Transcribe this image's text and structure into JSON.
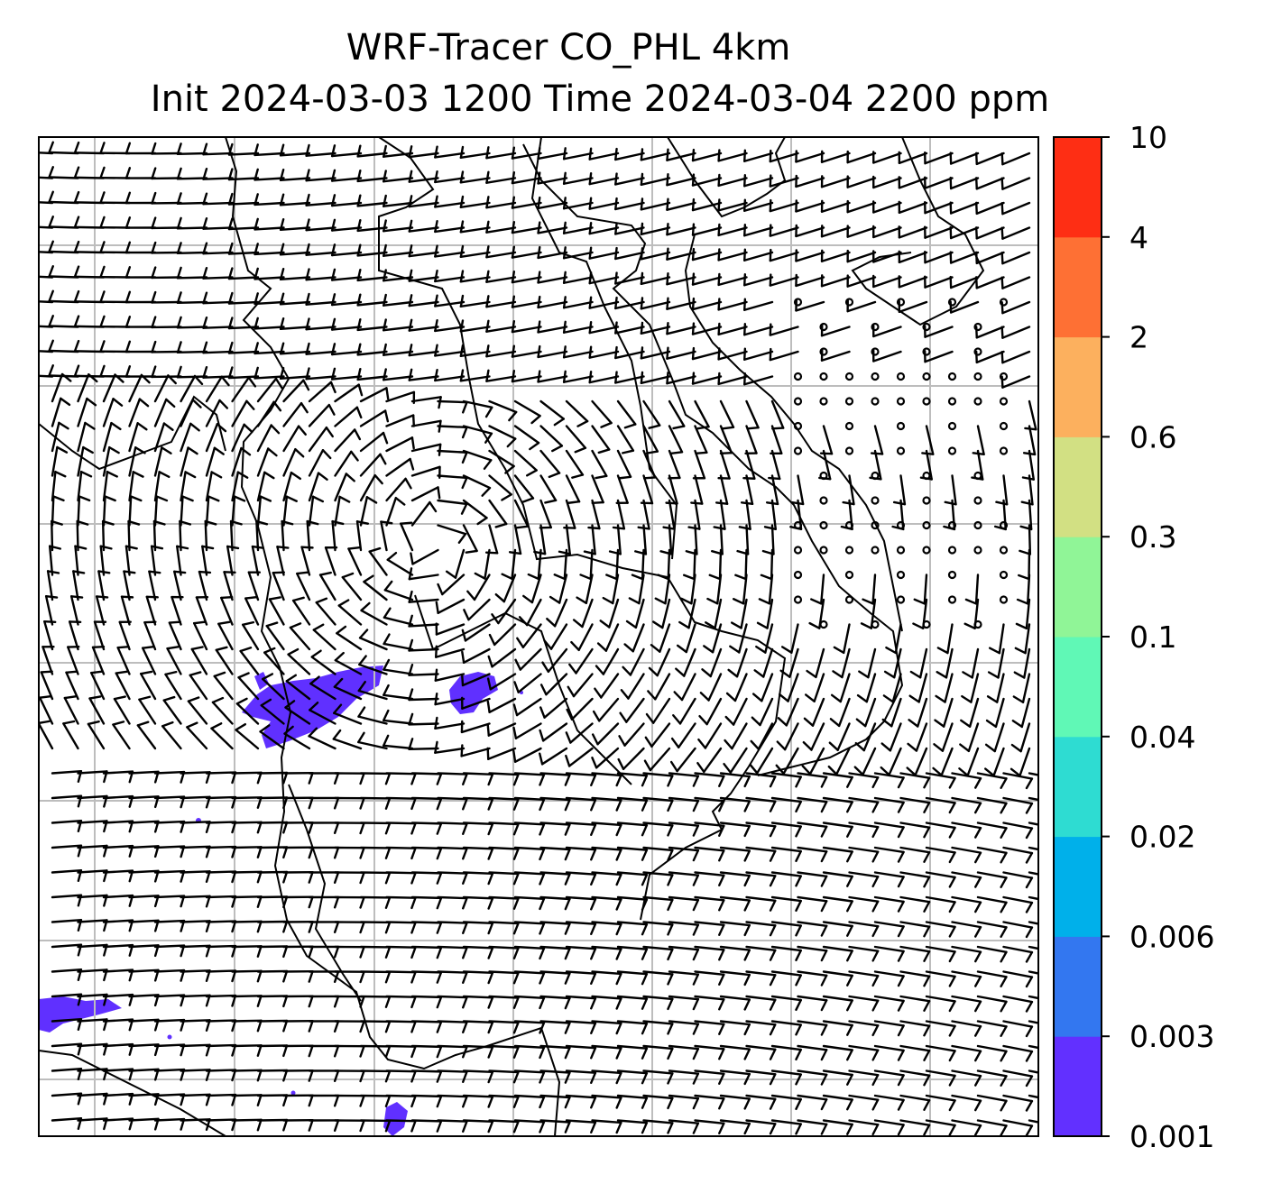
{
  "title": {
    "line1": "WRF-Tracer CO_PHL 4km",
    "line2": "Init 2024-03-03 1200 Time 2024-03-04 2200 ppm"
  },
  "map": {
    "gridlines": true,
    "grid_color": "#bdbdbd",
    "wind_barbs": true,
    "coastlines": true,
    "tracer_color": "#6030ff"
  },
  "colorbar": {
    "ticks": [
      "0.001",
      "0.003",
      "0.006",
      "0.02",
      "0.04",
      "0.1",
      "0.3",
      "0.6",
      "2",
      "4",
      "10"
    ],
    "colors": [
      "#6230ff",
      "#3377f0",
      "#00b0ea",
      "#2edcd2",
      "#60f8b6",
      "#90f597",
      "#d2e083",
      "#fcb05e",
      "#fe7034",
      "#fe2e14"
    ]
  }
}
